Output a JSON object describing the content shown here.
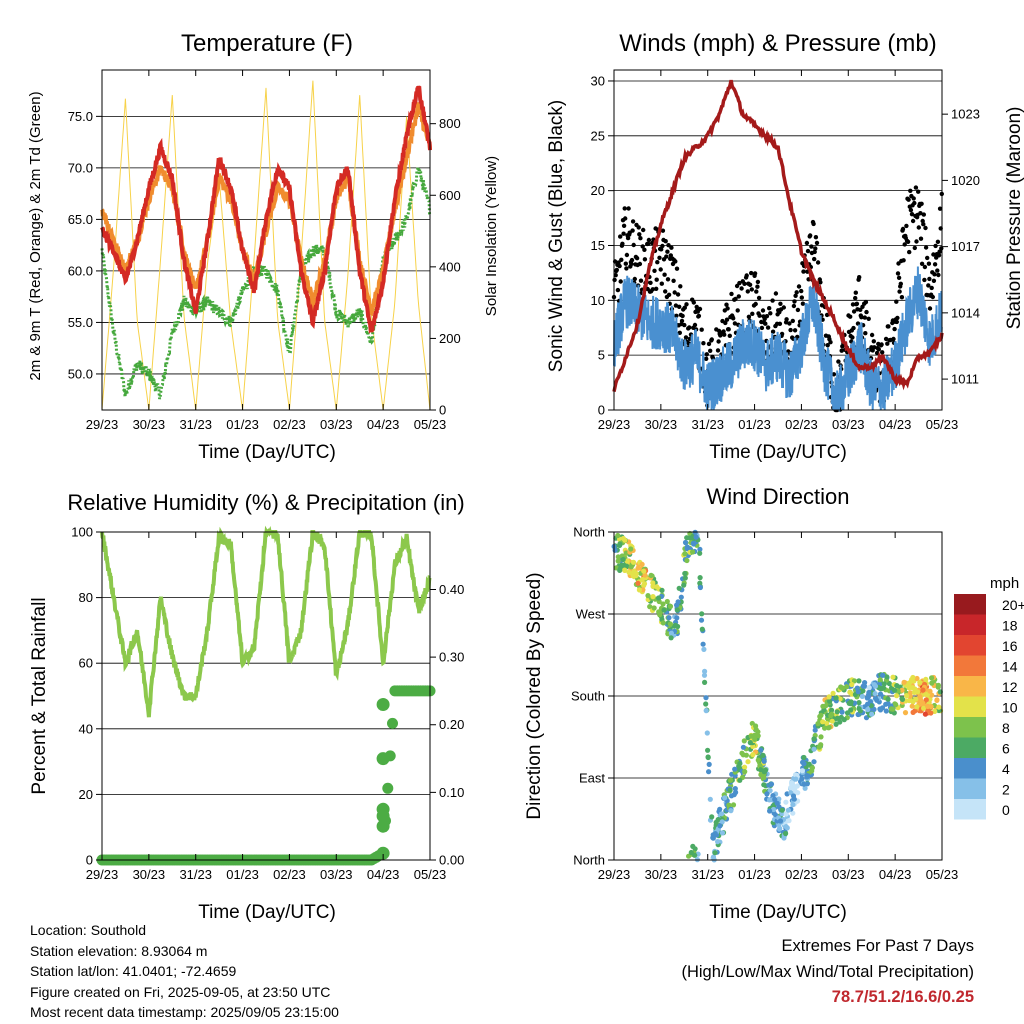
{
  "x_tick_labels": [
    "29/23",
    "30/23",
    "31/23",
    "01/23",
    "02/23",
    "03/23",
    "04/23",
    "05/23"
  ],
  "xlabel": "Time (Day/UTC)",
  "temperature": {
    "title": "Temperature (F)",
    "ylabel_left": "2m & 9m T (Red, Orange) & 2m Td (Green)",
    "ylabel_right": "Solar Insolation (Yellow)",
    "left_ticks": [
      "50.0",
      "55.0",
      "60.0",
      "65.0",
      "70.0",
      "75.0"
    ],
    "right_ticks": [
      "0",
      "200",
      "400",
      "600",
      "800"
    ]
  },
  "winds": {
    "title": "Winds (mph) & Pressure (mb)",
    "ylabel_left": "Sonic Wind & Gust (Blue, Black)",
    "ylabel_right": "Station Pressure (Maroon)",
    "left_ticks": [
      "0",
      "5",
      "10",
      "15",
      "20",
      "25",
      "30"
    ],
    "right_ticks": [
      "1011",
      "1014",
      "1017",
      "1020",
      "1023"
    ]
  },
  "humidity": {
    "title": "Relative Humidity (%) & Precipitation (in)",
    "ylabel_left": "Percent & Total Rainfall",
    "left_ticks": [
      "0",
      "20",
      "40",
      "60",
      "80",
      "100"
    ],
    "right_ticks": [
      "0.00",
      "0.10",
      "0.20",
      "0.30",
      "0.40"
    ]
  },
  "direction": {
    "title": "Wind Direction",
    "ylabel_left": "Direction (Colored By Speed)",
    "dir_ticks": [
      "North",
      "East",
      "South",
      "West",
      "North"
    ],
    "legend_title": "mph",
    "legend_labels": [
      "0",
      "2",
      "4",
      "6",
      "8",
      "10",
      "12",
      "14",
      "16",
      "18",
      "20+"
    ],
    "legend_colors": [
      "#c5e4f8",
      "#86c0e8",
      "#4a8fcc",
      "#4caa64",
      "#7dc24c",
      "#e3e24a",
      "#f9b648",
      "#f2783a",
      "#e24530",
      "#c8262a",
      "#981a1e"
    ]
  },
  "info": {
    "location": "Location: Southold",
    "elevation": "Station elevation: 8.93064 m",
    "latlon": "Station lat/lon: 41.0401; -72.4659",
    "created": "Figure created on Fri, 2025-09-05, at 23:50 UTC",
    "recent": "Most recent data timestamp: 2025/09/05 23:15:00"
  },
  "extremes": {
    "title": "Extremes For Past 7 Days",
    "subtitle": "(High/Low/Max Wind/Total Precipitation)",
    "values": "78.7/51.2/16.6/0.25"
  },
  "chart_data": [
    {
      "type": "line",
      "title": "Temperature (F)",
      "x": [
        0,
        0.25,
        0.5,
        0.75,
        1,
        1.25,
        1.5,
        1.75,
        2,
        2.25,
        2.5,
        2.75,
        3,
        3.25,
        3.5,
        3.75,
        4,
        4.25,
        4.5,
        4.75,
        5,
        5.25,
        5.5,
        5.75,
        6,
        6.25,
        6.5,
        6.75,
        7
      ],
      "xlabel": "Time (Day/UTC)",
      "ylabel": "2m & 9m T (Red, Orange) & 2m Td (Green)",
      "ylim": [
        46.5,
        79.5
      ],
      "series": [
        {
          "values": [
            64,
            62,
            59,
            63,
            68,
            72,
            69,
            61,
            56,
            63,
            71,
            68,
            62,
            58,
            65,
            70,
            68,
            60,
            55,
            60,
            68,
            70,
            60,
            54,
            59,
            67,
            73,
            78,
            72
          ]
        },
        {
          "values": [
            66,
            63,
            60,
            63,
            67,
            70,
            68,
            62,
            58,
            63,
            69,
            67,
            62,
            59,
            64,
            68,
            67,
            61,
            57,
            61,
            67,
            69,
            61,
            56,
            60,
            66,
            71,
            76,
            72
          ]
        },
        {
          "values": [
            62,
            54,
            48,
            51,
            50,
            48,
            54,
            57,
            56,
            57,
            56,
            55,
            58,
            60,
            60,
            58,
            52,
            60,
            62,
            62,
            56,
            55,
            56,
            53,
            61,
            63,
            65,
            70,
            66
          ]
        },
        {
          "values": [
            0,
            400,
            870,
            250,
            0,
            420,
            880,
            260,
            0,
            410,
            650,
            240,
            0,
            430,
            900,
            250,
            0,
            430,
            920,
            250,
            0,
            380,
            880,
            260,
            0,
            300,
            820,
            300,
            0
          ]
        }
      ],
      "y2lim": [
        0,
        950
      ]
    },
    {
      "type": "line",
      "title": "Winds (mph) & Pressure (mb)",
      "x": [
        0,
        0.25,
        0.5,
        0.75,
        1,
        1.25,
        1.5,
        1.75,
        2,
        2.25,
        2.5,
        2.75,
        3,
        3.25,
        3.5,
        3.75,
        4,
        4.25,
        4.5,
        4.75,
        5,
        5.25,
        5.5,
        5.75,
        6,
        6.25,
        6.5,
        6.75,
        7
      ],
      "xlabel": "Time (Day/UTC)",
      "ylabel": "Sonic Wind & Gust (Blue, Black)",
      "ylim": [
        0,
        31
      ],
      "series": [
        {
          "values": [
            6,
            10,
            9,
            8,
            8,
            7,
            4,
            5,
            2,
            3,
            4,
            6,
            6,
            4,
            5,
            3,
            6,
            10,
            4,
            1,
            3,
            6,
            2,
            2,
            4,
            8,
            11,
            6,
            9
          ]
        },
        {
          "values": [
            10,
            16,
            14,
            13,
            14,
            12,
            7,
            8,
            3,
            5,
            8,
            9,
            10,
            6,
            8,
            5,
            10,
            15,
            7,
            1,
            6,
            10,
            4,
            3,
            8,
            17,
            18,
            11,
            17
          ]
        },
        {
          "values": [
            1010.5,
            1012,
            1013.5,
            1016,
            1018,
            1019.5,
            1021,
            1021.5,
            1022,
            1023,
            1024.5,
            1023,
            1022.5,
            1022,
            1021.5,
            1019,
            1016.8,
            1015.5,
            1014.5,
            1013.5,
            1012.3,
            1011.5,
            1011.6,
            1012,
            1011,
            1010.8,
            1012,
            1012.2,
            1013
          ]
        }
      ],
      "y2lim": [
        1009.6,
        1025.0
      ]
    },
    {
      "type": "line",
      "title": "Relative Humidity (%) & Precipitation (in)",
      "x": [
        0,
        0.25,
        0.5,
        0.75,
        1,
        1.25,
        1.5,
        1.75,
        2,
        2.25,
        2.5,
        2.75,
        3,
        3.25,
        3.5,
        3.75,
        4,
        4.25,
        4.5,
        4.75,
        5,
        5.25,
        5.5,
        5.75,
        6,
        6.25,
        6.5,
        6.75,
        7
      ],
      "xlabel": "Time (Day/UTC)",
      "ylabel": "Percent & Total Rainfall",
      "ylim": [
        0,
        100
      ],
      "series": [
        {
          "values": [
            100,
            80,
            60,
            70,
            45,
            80,
            62,
            50,
            50,
            70,
            99,
            96,
            60,
            65,
            100,
            99,
            60,
            70,
            100,
            96,
            56,
            72,
            100,
            99,
            60,
            90,
            98,
            76,
            85
          ]
        },
        {
          "values": [
            0,
            0,
            0,
            0,
            0,
            0,
            0,
            0,
            0,
            0,
            0,
            0,
            0,
            0,
            0,
            0,
            0,
            0,
            0,
            0,
            0,
            0,
            0,
            0,
            0.01,
            0.25,
            0.25,
            0.25,
            0.25
          ]
        }
      ],
      "y2lim": [
        0,
        0.485
      ]
    },
    {
      "type": "scatter",
      "title": "Wind Direction",
      "xlabel": "Time (Day/UTC)",
      "ylabel": "Direction (Colored By Speed)",
      "ylim": [
        0,
        360
      ],
      "x": [
        0.05,
        0.3,
        0.6,
        1.0,
        1.3,
        1.6,
        1.8,
        2.1,
        2.4,
        2.7,
        3.0,
        3.3,
        3.6,
        3.9,
        4.2,
        4.5,
        4.8,
        5.1,
        5.4,
        5.7,
        6.0,
        6.3,
        6.6,
        6.9
      ],
      "y": [
        340,
        330,
        310,
        280,
        250,
        355,
        360,
        10,
        60,
        100,
        140,
        70,
        40,
        80,
        110,
        160,
        170,
        180,
        175,
        185,
        180,
        182,
        178,
        182
      ],
      "speed": [
        8,
        10,
        12,
        8,
        6,
        8,
        6,
        4,
        6,
        8,
        10,
        6,
        4,
        2,
        6,
        10,
        8,
        8,
        4,
        6,
        8,
        12,
        14,
        10
      ]
    }
  ]
}
